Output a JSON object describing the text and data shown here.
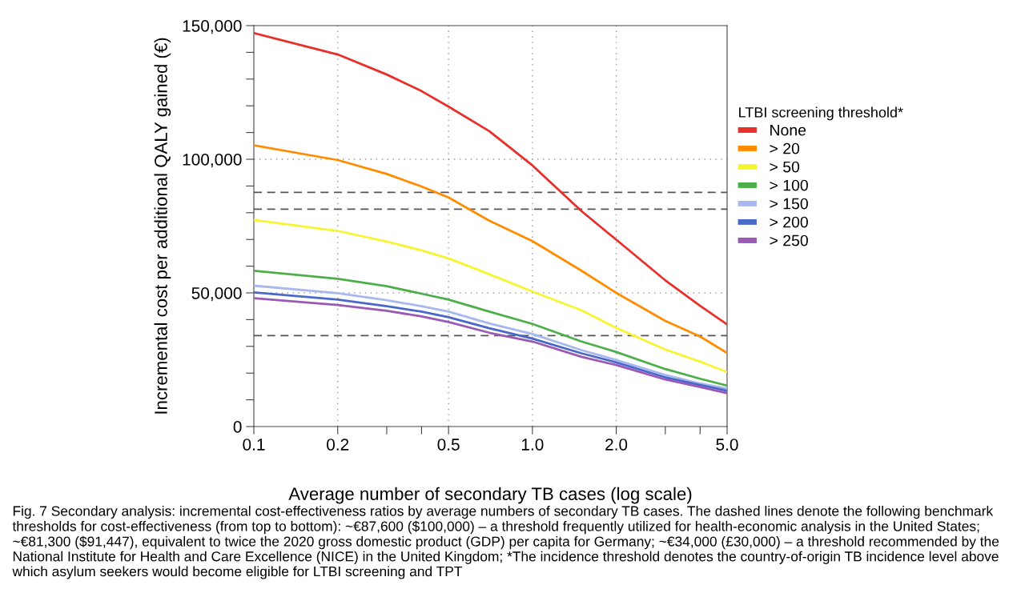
{
  "chart_data": {
    "type": "line",
    "xlabel": "Average number of secondary TB cases (log scale)",
    "ylabel": "Incremental cost per additional QALY gained (€)",
    "legend_title": "LTBI screening threshold*",
    "x": [
      0.1,
      0.2,
      0.3,
      0.4,
      0.5,
      0.7,
      1.0,
      1.5,
      2.0,
      3.0,
      4.0,
      5.0
    ],
    "series": [
      {
        "name": "None",
        "color": "#e8302a",
        "values": [
          147200,
          139200,
          131700,
          125500,
          119700,
          110500,
          97700,
          80600,
          69900,
          54700,
          45200,
          38200
        ]
      },
      {
        "name": "> 20",
        "color": "#ff8c00",
        "values": [
          105200,
          99700,
          94500,
          89800,
          85700,
          77000,
          69400,
          58300,
          50000,
          39500,
          33700,
          27500
        ]
      },
      {
        "name": "> 50",
        "color": "#f7f532",
        "values": [
          77300,
          73200,
          69200,
          65900,
          62900,
          57000,
          50500,
          43500,
          36900,
          28800,
          24300,
          20400
        ]
      },
      {
        "name": "> 100",
        "color": "#4daf4a",
        "values": [
          58300,
          55300,
          52500,
          49700,
          47500,
          43000,
          38400,
          31800,
          27900,
          21500,
          17900,
          15300
        ]
      },
      {
        "name": "> 150",
        "color": "#a6b8ee",
        "values": [
          52700,
          49900,
          47300,
          45000,
          43000,
          38600,
          34600,
          28600,
          24900,
          19300,
          16100,
          14200
        ]
      },
      {
        "name": "> 200",
        "color": "#4a68c9",
        "values": [
          50200,
          47500,
          45000,
          43000,
          40900,
          36800,
          32900,
          27400,
          24000,
          18400,
          15500,
          13400
        ]
      },
      {
        "name": "> 250",
        "color": "#9b59b6",
        "values": [
          48000,
          45500,
          43300,
          41200,
          39100,
          35100,
          31800,
          26100,
          23000,
          17600,
          14800,
          12500
        ]
      }
    ],
    "log": "x",
    "xlim": [
      0.1,
      5.0
    ],
    "xticks": [
      {
        "value": 0.1,
        "label": "0.1"
      },
      {
        "value": 0.2,
        "label": "0.2"
      },
      {
        "value": 0.3,
        "label": null
      },
      {
        "value": 0.4,
        "label": null
      },
      {
        "value": 0.5,
        "label": "0.5"
      },
      {
        "value": 1.0,
        "label": "1.0"
      },
      {
        "value": 2.0,
        "label": "2.0"
      },
      {
        "value": 3.0,
        "label": null
      },
      {
        "value": 4.0,
        "label": null
      },
      {
        "value": 5.0,
        "label": "5.0"
      }
    ],
    "ylim": [
      0,
      150000
    ],
    "yticks": [
      {
        "value": 0,
        "label": "0"
      },
      {
        "value": 10000,
        "label": null
      },
      {
        "value": 20000,
        "label": null
      },
      {
        "value": 30000,
        "label": null
      },
      {
        "value": 40000,
        "label": null
      },
      {
        "value": 50000,
        "label": "50,000"
      },
      {
        "value": 60000,
        "label": null
      },
      {
        "value": 70000,
        "label": null
      },
      {
        "value": 80000,
        "label": null
      },
      {
        "value": 90000,
        "label": null
      },
      {
        "value": 100000,
        "label": "100,000"
      },
      {
        "value": 110000,
        "label": null
      },
      {
        "value": 120000,
        "label": null
      },
      {
        "value": 130000,
        "label": null
      },
      {
        "value": 140000,
        "label": null
      },
      {
        "value": 150000,
        "label": "150,000"
      }
    ],
    "grid": true,
    "legend": "right",
    "line_style": "solid",
    "ref_lines": [
      {
        "axis": "y",
        "value": 87600,
        "color": "#555555",
        "line_style": "dashed"
      },
      {
        "axis": "y",
        "value": 81300,
        "color": "#555555",
        "line_style": "dashed"
      },
      {
        "axis": "y",
        "value": 34000,
        "color": "#555555",
        "line_style": "dashed"
      }
    ],
    "annotations": [
      "Fig. 7 Secondary analysis: incremental cost-effectiveness ratios by average numbers of secondary TB cases. The dashed lines denote the following benchmark thresholds for cost-effectiveness (from top to bottom): ~€87,600 ($100,000) – a threshold frequently utilized for health-economic analysis in the United States; ~€81,300 ($91,447), equivalent to twice the 2020 gross domestic product (GDP) per capita for Germany; ~€34,000 (£30,000) – a threshold recommended by the National Institute for Health and Care Excellence (NICE) in the United Kingdom; *The incidence threshold denotes the country-of-origin TB incidence level above which asylum seekers would become eligible for LTBI screening and TPT"
    ]
  }
}
